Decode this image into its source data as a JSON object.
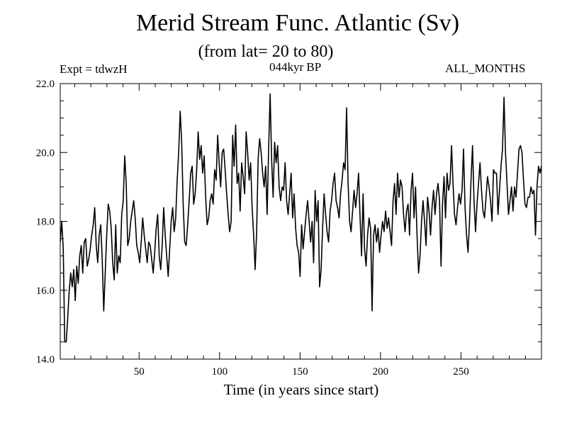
{
  "chart_data": {
    "type": "line",
    "title": "Merid Stream Func. Atlantic (Sv)",
    "subtitle": "(from lat= 20 to 80)",
    "left_label": "Expt = tdwzH",
    "center_label": "044kyr BP",
    "right_label": "ALL_MONTHS",
    "xlabel": "Time (in years since start)",
    "ylabel": "",
    "xlim": [
      1,
      300
    ],
    "ylim": [
      14.0,
      22.0
    ],
    "x_ticks": [
      50,
      100,
      150,
      200,
      250
    ],
    "x_tick_labels": [
      "50",
      "100",
      "150",
      "200",
      "250"
    ],
    "y_ticks": [
      14.0,
      16.0,
      18.0,
      20.0,
      22.0
    ],
    "y_tick_labels": [
      "14.0",
      "16.0",
      "18.0",
      "20.0",
      "22.0"
    ],
    "series": [
      {
        "name": "Merid Stream Func. Atlantic",
        "color": "#000000",
        "values": [
          17.4,
          18.0,
          17.2,
          14.5,
          14.5,
          15.2,
          16.0,
          16.5,
          16.1,
          16.6,
          15.7,
          16.7,
          16.2,
          17.0,
          17.3,
          16.5,
          17.4,
          17.5,
          16.7,
          16.9,
          17.2,
          17.6,
          17.9,
          18.4,
          17.3,
          16.8,
          17.6,
          17.9,
          16.9,
          15.4,
          16.5,
          17.6,
          18.5,
          18.3,
          17.8,
          16.8,
          16.3,
          17.9,
          16.5,
          17.0,
          16.8,
          18.2,
          18.6,
          19.9,
          19.1,
          17.3,
          17.5,
          18.0,
          18.3,
          18.6,
          18.1,
          17.3,
          17.1,
          16.8,
          17.4,
          18.1,
          17.6,
          17.2,
          16.8,
          17.4,
          17.3,
          16.9,
          16.5,
          17.1,
          17.8,
          18.2,
          17.0,
          16.6,
          17.3,
          18.4,
          17.6,
          17.0,
          16.4,
          17.2,
          18.0,
          18.4,
          17.7,
          18.1,
          19.2,
          20.0,
          21.2,
          20.3,
          18.5,
          17.4,
          17.3,
          17.9,
          18.6,
          19.4,
          19.6,
          18.5,
          18.8,
          19.5,
          20.6,
          19.8,
          20.2,
          19.4,
          19.9,
          18.7,
          17.9,
          18.1,
          18.6,
          18.8,
          18.5,
          19.5,
          19.2,
          20.5,
          19.7,
          19.0,
          20.0,
          20.1,
          19.5,
          18.8,
          18.2,
          17.7,
          18.0,
          20.5,
          19.6,
          20.8,
          19.1,
          19.4,
          18.3,
          19.7,
          19.3,
          18.8,
          20.6,
          20.0,
          19.2,
          19.7,
          18.4,
          17.6,
          16.6,
          17.7,
          19.8,
          20.4,
          20.0,
          19.4,
          19.0,
          19.6,
          18.2,
          20.1,
          21.7,
          19.8,
          18.7,
          20.3,
          19.7,
          20.2,
          19.0,
          18.6,
          19.0,
          18.9,
          19.7,
          18.6,
          18.2,
          18.8,
          19.4,
          18.1,
          18.8,
          17.8,
          17.3,
          17.1,
          16.4,
          17.9,
          17.2,
          17.7,
          18.2,
          18.6,
          18.0,
          17.4,
          18.0,
          16.8,
          18.9,
          18.0,
          18.6,
          16.1,
          16.6,
          17.8,
          18.8,
          18.2,
          17.7,
          17.4,
          18.3,
          18.6,
          19.1,
          19.4,
          18.6,
          18.4,
          18.1,
          18.8,
          19.2,
          19.7,
          19.5,
          21.3,
          19.1,
          18.0,
          17.7,
          18.3,
          18.9,
          18.4,
          18.8,
          19.4,
          18.1,
          17.0,
          18.8,
          17.2,
          16.7,
          17.6,
          18.1,
          17.8,
          15.4,
          17.6,
          17.9,
          17.4,
          17.8,
          17.1,
          17.6,
          18.0,
          17.7,
          18.3,
          17.8,
          18.1,
          17.7,
          17.3,
          18.6,
          19.1,
          18.2,
          19.4,
          18.7,
          19.2,
          19.0,
          18.2,
          17.7,
          18.3,
          18.5,
          17.6,
          18.9,
          19.4,
          18.1,
          19.0,
          17.6,
          16.5,
          17.0,
          18.0,
          18.6,
          18.0,
          17.3,
          18.7,
          18.3,
          17.6,
          18.4,
          18.9,
          18.2,
          18.8,
          19.1,
          18.6,
          16.7,
          18.5,
          19.3,
          18.1,
          19.4,
          18.9,
          19.1,
          20.2,
          19.1,
          18.2,
          17.9,
          18.4,
          18.8,
          18.5,
          18.9,
          20.1,
          18.4,
          17.6,
          17.1,
          18.0,
          19.2,
          20.2,
          18.6,
          17.7,
          18.5,
          19.1,
          19.7,
          18.9,
          18.3,
          18.1,
          18.7,
          19.3,
          19.0,
          18.6,
          18.0,
          19.5,
          19.4,
          19.4,
          18.2,
          18.9,
          19.6,
          20.1,
          21.6,
          20.0,
          19.1,
          18.2,
          18.6,
          19.0,
          18.3,
          19.0,
          18.7,
          19.4,
          20.1,
          20.2,
          20.0,
          19.2,
          18.5,
          18.4,
          18.7,
          18.7,
          19.0,
          18.8,
          18.9,
          17.6,
          19.0,
          19.6,
          19.4,
          19.6
        ]
      }
    ]
  }
}
